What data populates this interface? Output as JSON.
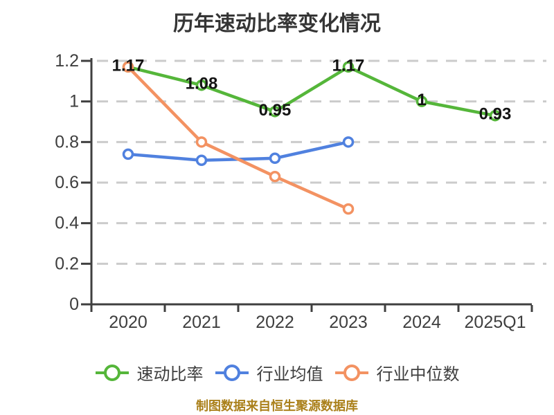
{
  "chart_data": {
    "type": "line",
    "title": "历年速动比率变化情况",
    "categories": [
      "2020",
      "2021",
      "2022",
      "2023",
      "2024",
      "2025Q1"
    ],
    "series": [
      {
        "name": "速动比率",
        "color": "#55B63A",
        "values": [
          1.17,
          1.08,
          0.95,
          1.17,
          1,
          0.93
        ],
        "point_labels": [
          "1.17",
          "1.08",
          "0.95",
          "1.17",
          "1",
          "0.93"
        ]
      },
      {
        "name": "行业均值",
        "color": "#5081DF",
        "values": [
          0.74,
          0.71,
          0.72,
          0.8
        ],
        "point_labels": []
      },
      {
        "name": "行业中位数",
        "color": "#F39262",
        "values": [
          1.17,
          0.8,
          0.63,
          0.47
        ],
        "point_labels": []
      }
    ],
    "ylim": [
      0,
      1.2
    ],
    "ytick_labels": [
      "0",
      "0.2",
      "0.4",
      "0.6",
      "0.8",
      "1",
      "1.2"
    ],
    "grid": {
      "style": "horizontal-dashed",
      "color": "#CBCBCB"
    },
    "axis_color": "#3F3F3F",
    "tick_label_color": "#3E3E3E",
    "point_label_color": "#141414",
    "marker_style": "circle-white-fill",
    "legend_position": "bottom"
  },
  "footer": {
    "text": "制图数据来自恒生聚源数据库",
    "color": "#AA801A"
  }
}
